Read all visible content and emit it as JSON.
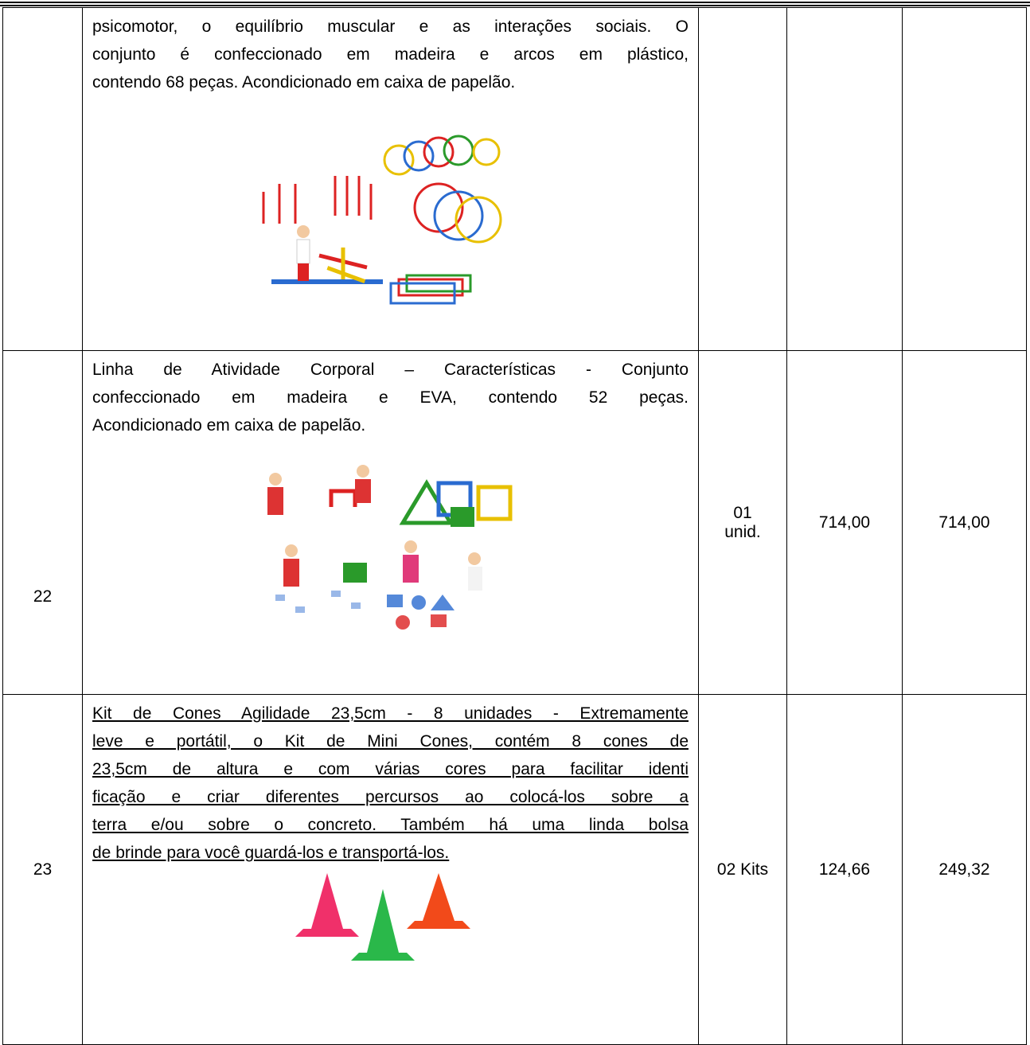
{
  "table": {
    "rows": [
      {
        "description": [
          "psicomotor, o equilíbrio muscular e as interações sociais. O",
          "conjunto é confeccionado em madeira e arcos em plástico,",
          "contendo 68 peças. Acondicionado em caixa de papelão."
        ]
      },
      {
        "item": "22",
        "description": [
          "Linha de Atividade Corporal – Características - Conjunto",
          "confeccionado em madeira e EVA, contendo 52 peças.",
          "Acondicionado em caixa de papelão."
        ],
        "quantity": "01 unid.",
        "unit_price": "714,00",
        "total": "714,00"
      },
      {
        "item": "23",
        "description": [
          "Kit de Cones Agilidade 23,5cm - 8 unidades - Extremamente",
          "leve e portátil, o Kit de Mini Cones, contém 8 cones de",
          "23,5cm de altura e com várias cores para facilitar identi",
          "ficação e criar diferentes percursos ao colocá-los sobre a",
          "terra e/ou sobre o concreto.  Também há uma linda bolsa",
          "de brinde para você guardá-los e transportá-los."
        ],
        "quantity": "02 Kits",
        "unit_price": "124,66",
        "total": "249,32"
      }
    ]
  }
}
